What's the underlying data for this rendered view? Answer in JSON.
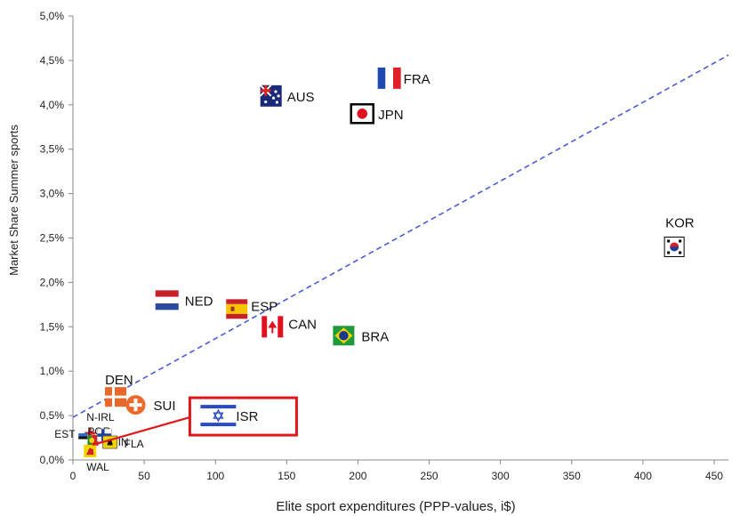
{
  "chart_data": {
    "type": "scatter",
    "xlabel": "Elite sport expenditures (PPP-values, i$)",
    "ylabel": "Market Share Summer sports",
    "xlim": [
      0,
      460
    ],
    "ylim": [
      0,
      5.0
    ],
    "x_ticks": [
      "0",
      "50",
      "100",
      "150",
      "200",
      "250",
      "300",
      "350",
      "400",
      "450"
    ],
    "y_ticks": [
      "0,0%",
      "0,5%",
      "1,0%",
      "1,5%",
      "2,0%",
      "2,5%",
      "3,0%",
      "3,5%",
      "4,0%",
      "4,5%",
      "5,0%"
    ],
    "grid": false,
    "trendline": {
      "style": "dashed",
      "color": "#4a5cdb",
      "x": [
        0,
        460
      ],
      "y": [
        0.48,
        4.56
      ]
    },
    "highlight_box_color": "#e0161b",
    "points": [
      {
        "label": "FRA",
        "x": 222,
        "y": 4.3,
        "flag": "france-flag"
      },
      {
        "label": "AUS",
        "x": 139,
        "y": 4.1,
        "flag": "australia-flag"
      },
      {
        "label": "JPN",
        "x": 203,
        "y": 3.9,
        "flag": "japan-flag"
      },
      {
        "label": "KOR",
        "x": 422,
        "y": 2.4,
        "flag": "korea-flag"
      },
      {
        "label": "NED",
        "x": 66,
        "y": 1.8,
        "flag": "netherlands-flag"
      },
      {
        "label": "ESP",
        "x": 115,
        "y": 1.7,
        "flag": "spain-flag"
      },
      {
        "label": "CAN",
        "x": 140,
        "y": 1.5,
        "flag": "canada-flag"
      },
      {
        "label": "BRA",
        "x": 190,
        "y": 1.4,
        "flag": "brazil-flag"
      },
      {
        "label": "DEN",
        "x": 30,
        "y": 0.71,
        "flag": "denmark-flag"
      },
      {
        "label": "SUI",
        "x": 44,
        "y": 0.62,
        "flag": "switzerland-flag"
      },
      {
        "label": "ISR",
        "x": 102,
        "y": 0.5,
        "flag": "israel-flag"
      },
      {
        "label": "N-IRL",
        "x": 12,
        "y": 0.3,
        "flag": "northern-ireland-flag"
      },
      {
        "label": "POR",
        "x": 14,
        "y": 0.22,
        "flag": "portugal-flag"
      },
      {
        "label": "FIN",
        "x": 22,
        "y": 0.28,
        "flag": "finland-flag"
      },
      {
        "label": "EST",
        "x": 7,
        "y": 0.25,
        "flag": "estonia-flag"
      },
      {
        "label": "FLA",
        "x": 26,
        "y": 0.2,
        "flag": "flanders-flag"
      },
      {
        "label": "WAL",
        "x": 12,
        "y": 0.1,
        "flag": "wales-flag"
      }
    ]
  }
}
